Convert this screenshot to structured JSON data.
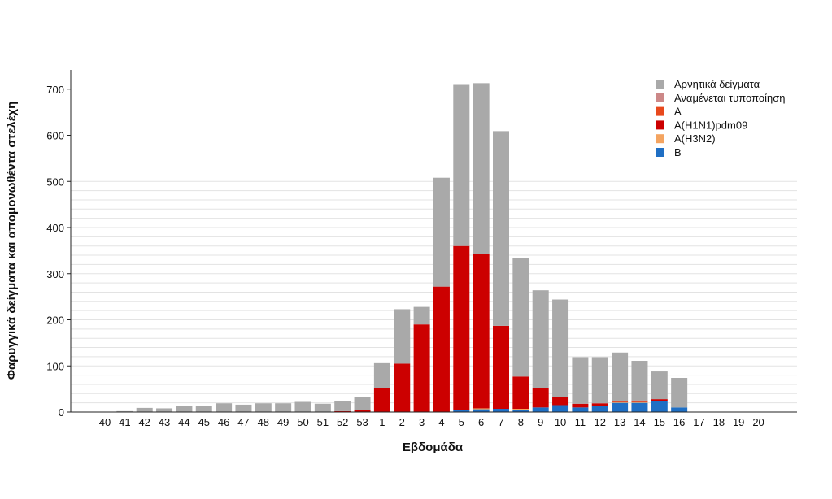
{
  "chart_data": {
    "type": "bar",
    "stacked": true,
    "title": "",
    "xlabel": "Εβδομάδα",
    "ylabel": "Φαρυγγικά δείγματα και απομονωθέντα στελέχη",
    "ylim": [
      0,
      740
    ],
    "yticks": [
      0,
      100,
      200,
      300,
      400,
      500,
      600,
      700
    ],
    "grid": "horizontal",
    "legend_position": "top-right",
    "categories": [
      "40",
      "41",
      "42",
      "43",
      "44",
      "45",
      "46",
      "47",
      "48",
      "49",
      "50",
      "51",
      "52",
      "53",
      "1",
      "2",
      "3",
      "4",
      "5",
      "6",
      "7",
      "8",
      "9",
      "10",
      "11",
      "12",
      "13",
      "14",
      "15",
      "16",
      "17",
      "18",
      "19",
      "20"
    ],
    "series": [
      {
        "name": "B",
        "color": "#1f6fc4",
        "values": [
          0,
          0,
          0,
          0,
          0,
          0,
          0,
          0,
          0,
          0,
          0,
          0,
          0,
          0,
          0,
          0,
          0,
          0,
          5,
          6,
          7,
          5,
          10,
          15,
          10,
          14,
          20,
          20,
          24,
          10,
          0,
          0,
          0,
          0
        ]
      },
      {
        "name": "A(H3N2)",
        "color": "#f4a460",
        "values": [
          0,
          0,
          0,
          0,
          0,
          0,
          0,
          0,
          0,
          0,
          0,
          0,
          0,
          0,
          0,
          0,
          0,
          0,
          0,
          2,
          0,
          2,
          0,
          0,
          0,
          0,
          2,
          2,
          0,
          0,
          0,
          0,
          0,
          0
        ]
      },
      {
        "name": "A(H1N1)pdm09",
        "color": "#cc0000",
        "values": [
          0,
          0,
          0,
          0,
          0,
          0,
          0,
          0,
          0,
          0,
          0,
          0,
          2,
          5,
          52,
          105,
          190,
          272,
          355,
          335,
          180,
          70,
          42,
          18,
          8,
          5,
          2,
          3,
          4,
          0,
          0,
          0,
          0,
          0
        ]
      },
      {
        "name": "A",
        "color": "#e8481c",
        "values": [
          0,
          0,
          0,
          0,
          0,
          0,
          0,
          0,
          0,
          0,
          0,
          0,
          0,
          0,
          0,
          0,
          0,
          0,
          0,
          0,
          0,
          0,
          0,
          0,
          0,
          0,
          0,
          0,
          0,
          0,
          0,
          0,
          0,
          0
        ]
      },
      {
        "name": "Αναμένεται τυποποίηση",
        "color": "#cc8888",
        "values": [
          0,
          0,
          0,
          0,
          0,
          0,
          0,
          0,
          0,
          0,
          0,
          0,
          0,
          0,
          0,
          0,
          0,
          0,
          0,
          0,
          0,
          0,
          0,
          0,
          0,
          0,
          0,
          0,
          0,
          0,
          0,
          0,
          0,
          0
        ]
      },
      {
        "name": "Αρνητικά δείγματα",
        "color": "#a9a9a9",
        "values": [
          0,
          2,
          9,
          8,
          13,
          14,
          19,
          16,
          19,
          19,
          22,
          18,
          22,
          28,
          54,
          118,
          38,
          236,
          351,
          370,
          422,
          257,
          212,
          211,
          101,
          100,
          105,
          86,
          60,
          64,
          0,
          0,
          0,
          0
        ]
      }
    ],
    "legend_order": [
      "Αρνητικά δείγματα",
      "Αναμένεται τυποποίηση",
      "A",
      "A(H1N1)pdm09",
      "A(H3N2)",
      "B"
    ]
  }
}
